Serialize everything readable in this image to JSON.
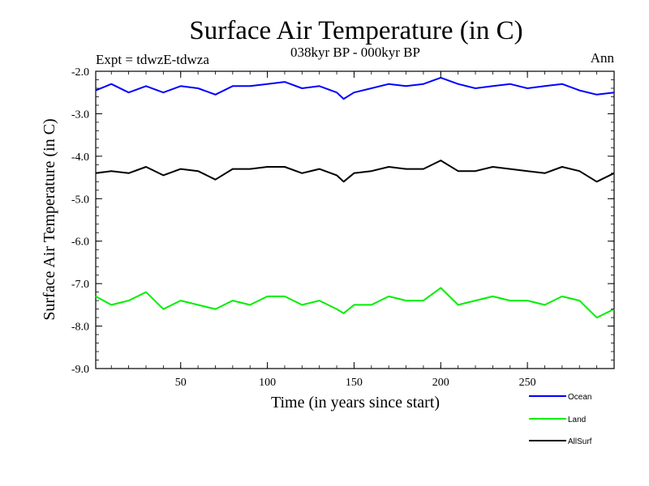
{
  "header": {
    "title": "Surface Air Temperature (in C)",
    "experiment": "Expt = tdwzE-tdwza",
    "period": "038kyr BP - 000kyr BP",
    "season": "Ann"
  },
  "chart_data": {
    "type": "line",
    "title": "Surface Air Temperature (in C)",
    "xlabel": "Time (in years since start)",
    "ylabel": "Surface Air Temperature (in C)",
    "xlim": [
      1,
      300
    ],
    "ylim": [
      -9.0,
      -2.0
    ],
    "xticks": [
      50,
      100,
      150,
      200,
      250
    ],
    "xtick_labels": [
      "50",
      "100",
      "150",
      "200",
      "250"
    ],
    "yticks": [
      -2.0,
      -3.0,
      -4.0,
      -5.0,
      -6.0,
      -7.0,
      -8.0,
      -9.0
    ],
    "ytick_labels": [
      "-2.0",
      "-3.0",
      "-4.0",
      "-5.0",
      "-6.0",
      "-7.0",
      "-8.0",
      "-9.0"
    ],
    "grid": false,
    "legend_position": "bottom-right",
    "x": [
      1,
      10,
      20,
      30,
      40,
      50,
      60,
      70,
      80,
      90,
      100,
      110,
      120,
      130,
      140,
      144,
      150,
      160,
      170,
      180,
      190,
      200,
      210,
      220,
      230,
      240,
      250,
      260,
      270,
      280,
      290,
      300
    ],
    "series": [
      {
        "name": "Ocean",
        "color": "#0000ff",
        "values": [
          -2.45,
          -2.3,
          -2.5,
          -2.35,
          -2.5,
          -2.35,
          -2.4,
          -2.55,
          -2.35,
          -2.35,
          -2.3,
          -2.25,
          -2.4,
          -2.35,
          -2.5,
          -2.65,
          -2.5,
          -2.4,
          -2.3,
          -2.35,
          -2.3,
          -2.15,
          -2.3,
          -2.4,
          -2.35,
          -2.3,
          -2.4,
          -2.35,
          -2.3,
          -2.45,
          -2.55,
          -2.5
        ]
      },
      {
        "name": "Land",
        "color": "#00ee00",
        "values": [
          -7.3,
          -7.5,
          -7.4,
          -7.2,
          -7.6,
          -7.4,
          -7.5,
          -7.6,
          -7.4,
          -7.5,
          -7.3,
          -7.3,
          -7.5,
          -7.4,
          -7.6,
          -7.7,
          -7.5,
          -7.5,
          -7.3,
          -7.4,
          -7.4,
          -7.1,
          -7.5,
          -7.4,
          -7.3,
          -7.4,
          -7.4,
          -7.5,
          -7.3,
          -7.4,
          -7.8,
          -7.6
        ]
      },
      {
        "name": "AllSurf",
        "color": "#000000",
        "values": [
          -4.4,
          -4.35,
          -4.4,
          -4.25,
          -4.45,
          -4.3,
          -4.35,
          -4.55,
          -4.3,
          -4.3,
          -4.25,
          -4.25,
          -4.4,
          -4.3,
          -4.45,
          -4.6,
          -4.4,
          -4.35,
          -4.25,
          -4.3,
          -4.3,
          -4.1,
          -4.35,
          -4.35,
          -4.25,
          -4.3,
          -4.35,
          -4.4,
          -4.25,
          -4.35,
          -4.6,
          -4.4
        ]
      }
    ]
  }
}
